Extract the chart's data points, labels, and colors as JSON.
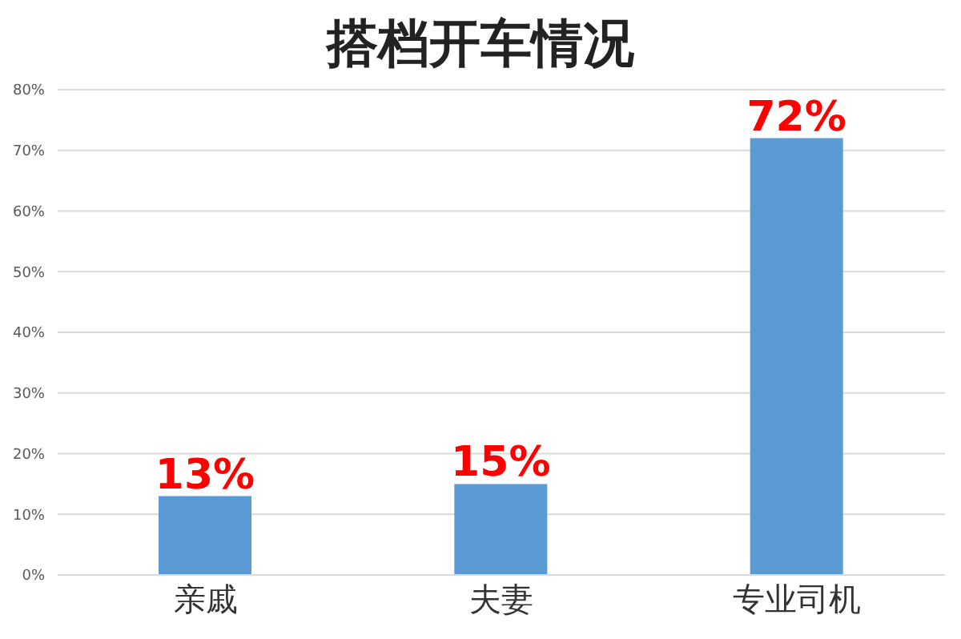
{
  "chart_data": {
    "type": "bar",
    "title": "搭档开车情况",
    "categories": [
      "亲戚",
      "夫妻",
      "专业司机"
    ],
    "values": [
      13,
      15,
      72
    ],
    "value_labels": [
      "13%",
      "15%",
      "72%"
    ],
    "color": "#5b9bd5",
    "ylim": [
      0,
      80
    ],
    "yticks": [
      {
        "value": 0,
        "label": "0%"
      },
      {
        "value": 10,
        "label": "10%"
      },
      {
        "value": 20,
        "label": "20%"
      },
      {
        "value": 30,
        "label": "30%"
      },
      {
        "value": 40,
        "label": "40%"
      },
      {
        "value": 50,
        "label": "50%"
      },
      {
        "value": 60,
        "label": "60%"
      },
      {
        "value": 70,
        "label": "70%"
      },
      {
        "value": 80,
        "label": "80%"
      }
    ],
    "grid": "y"
  }
}
